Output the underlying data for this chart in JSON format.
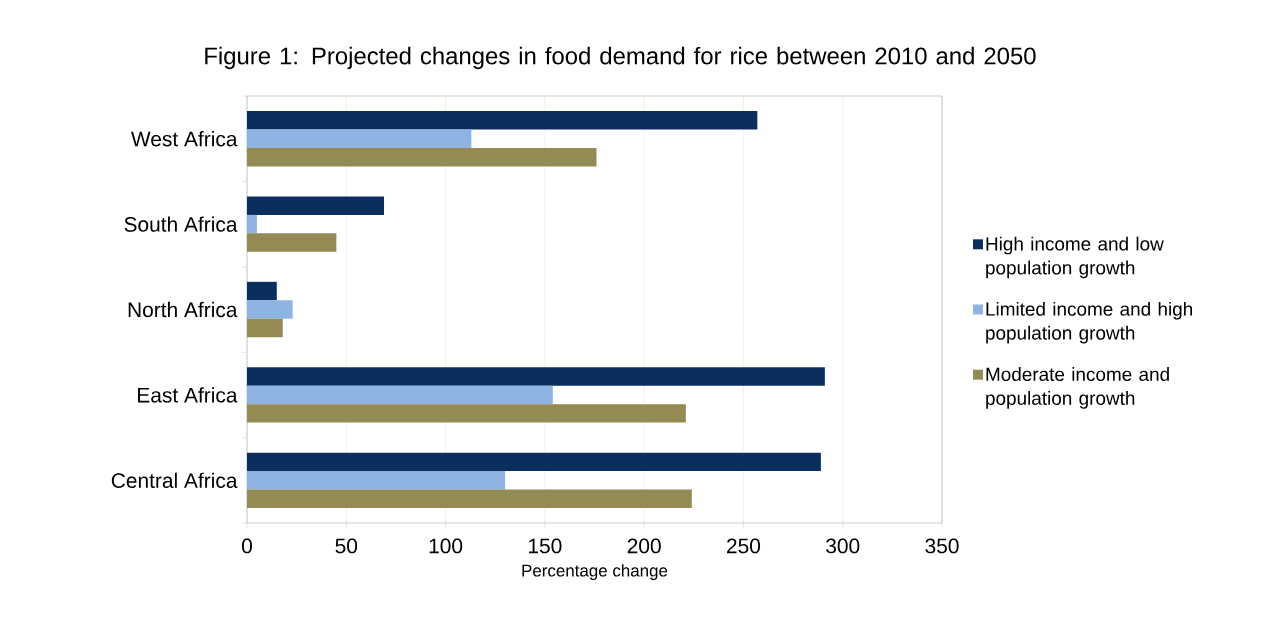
{
  "chart_data": {
    "type": "bar",
    "orientation": "horizontal",
    "title": "Figure 1: Projected changes in food demand for rice between 2010 and 2050",
    "xlabel": "Percentage change",
    "categories": [
      "West Africa",
      "South Africa",
      "North Africa",
      "East  Africa",
      "Central Africa"
    ],
    "series": [
      {
        "name": "High income and low population growth",
        "color": "#0a2f5c",
        "values": [
          257,
          69,
          15,
          291,
          289
        ]
      },
      {
        "name": "Limited income and high population growth",
        "color": "#8db4e2",
        "values": [
          113,
          5,
          23,
          154,
          130
        ]
      },
      {
        "name": "Moderate income and population growth",
        "color": "#948a54",
        "values": [
          176,
          45,
          18,
          221,
          224
        ]
      }
    ],
    "xlim": [
      0,
      350
    ],
    "xticks": [
      0,
      50,
      100,
      150,
      200,
      250,
      300,
      350
    ],
    "grid": "x",
    "legend": "right"
  }
}
